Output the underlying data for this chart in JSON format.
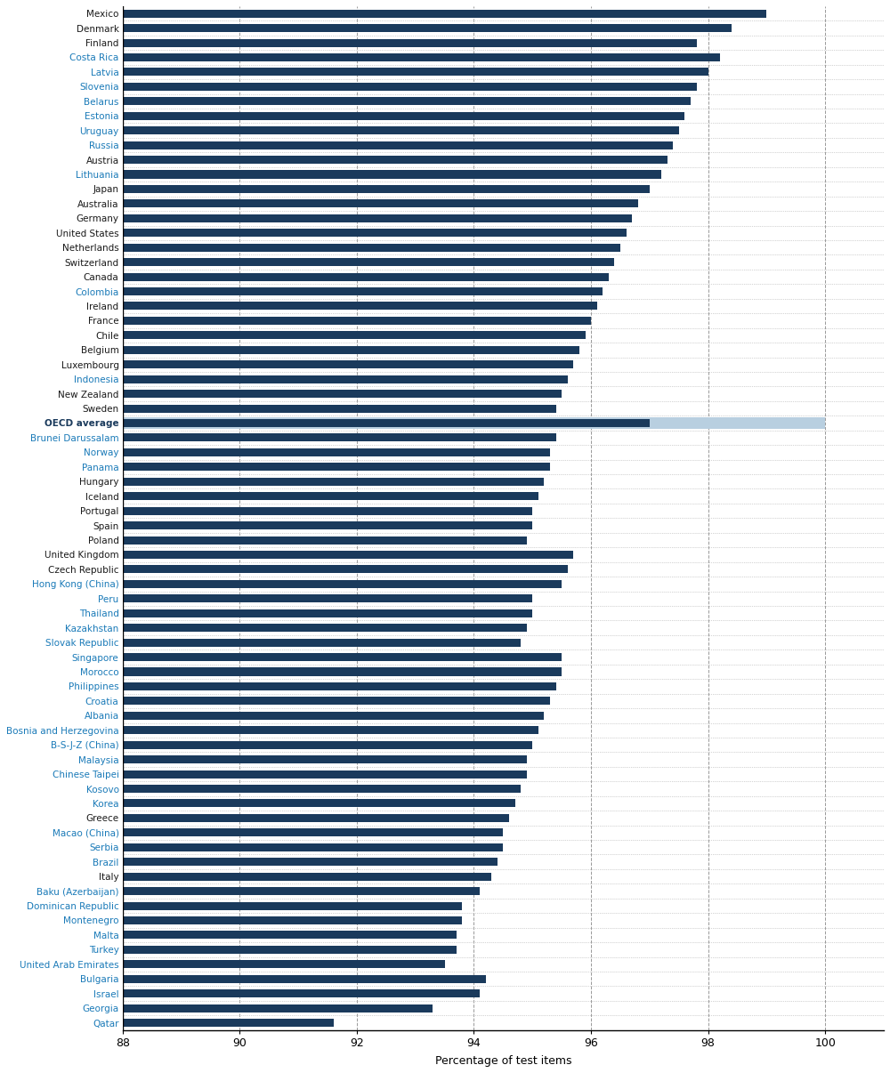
{
  "xlabel": "Percentage of test items",
  "bar_color": "#1a3a5c",
  "oecd_bg_color": "#b8cfe0",
  "countries_values": [
    [
      "Mexico",
      99.0
    ],
    [
      "Denmark",
      98.4
    ],
    [
      "Finland",
      97.8
    ],
    [
      "Costa Rica",
      98.2
    ],
    [
      "Latvia",
      98.0
    ],
    [
      "Slovenia",
      97.8
    ],
    [
      "Belarus",
      97.7
    ],
    [
      "Estonia",
      97.6
    ],
    [
      "Uruguay",
      97.5
    ],
    [
      "Russia",
      97.4
    ],
    [
      "Austria",
      97.3
    ],
    [
      "Lithuania",
      97.2
    ],
    [
      "Japan",
      97.0
    ],
    [
      "Australia",
      96.8
    ],
    [
      "Germany",
      96.7
    ],
    [
      "United States",
      96.6
    ],
    [
      "Netherlands",
      96.5
    ],
    [
      "Switzerland",
      96.4
    ],
    [
      "Canada",
      96.3
    ],
    [
      "Colombia",
      96.2
    ],
    [
      "Ireland",
      96.1
    ],
    [
      "France",
      96.0
    ],
    [
      "Chile",
      95.9
    ],
    [
      "Belgium",
      95.8
    ],
    [
      "Luxembourg",
      95.7
    ],
    [
      "Indonesia",
      95.6
    ],
    [
      "New Zealand",
      95.5
    ],
    [
      "Sweden",
      95.4
    ],
    [
      "OECD average",
      97.0
    ],
    [
      "Brunei Darussalam",
      95.4
    ],
    [
      "Norway",
      95.3
    ],
    [
      "Panama",
      95.3
    ],
    [
      "Hungary",
      95.2
    ],
    [
      "Iceland",
      95.1
    ],
    [
      "Portugal",
      95.0
    ],
    [
      "Spain",
      95.0
    ],
    [
      "Poland",
      94.9
    ],
    [
      "United Kingdom",
      95.7
    ],
    [
      "Czech Republic",
      95.6
    ],
    [
      "Hong Kong (China)",
      95.5
    ],
    [
      "Peru",
      95.0
    ],
    [
      "Thailand",
      95.0
    ],
    [
      "Kazakhstan",
      94.9
    ],
    [
      "Slovak Republic",
      94.8
    ],
    [
      "Singapore",
      95.5
    ],
    [
      "Morocco",
      95.5
    ],
    [
      "Philippines",
      95.4
    ],
    [
      "Croatia",
      95.3
    ],
    [
      "Albania",
      95.2
    ],
    [
      "Bosnia and Herzegovina",
      95.1
    ],
    [
      "B-S-J-Z (China)",
      95.0
    ],
    [
      "Malaysia",
      94.9
    ],
    [
      "Chinese Taipei",
      94.9
    ],
    [
      "Kosovo",
      94.8
    ],
    [
      "Korea",
      94.7
    ],
    [
      "Greece",
      94.6
    ],
    [
      "Macao (China)",
      94.5
    ],
    [
      "Serbia",
      94.5
    ],
    [
      "Brazil",
      94.4
    ],
    [
      "Italy",
      94.3
    ],
    [
      "Baku (Azerbaijan)",
      94.1
    ],
    [
      "Dominican Republic",
      93.8
    ],
    [
      "Montenegro",
      93.8
    ],
    [
      "Malta",
      93.7
    ],
    [
      "Turkey",
      93.7
    ],
    [
      "United Arab Emirates",
      93.5
    ],
    [
      "Bulgaria",
      94.2
    ],
    [
      "Israel",
      94.1
    ],
    [
      "Georgia",
      93.3
    ],
    [
      "Qatar",
      91.6
    ]
  ],
  "partner_countries": [
    "Costa Rica",
    "Panama",
    "Albania",
    "Bosnia and Herzegovina",
    "B-S-J-Z (China)",
    "Kosovo",
    "Macao (China)",
    "Baku (Azerbaijan)",
    "Dominican Republic",
    "Montenegro",
    "Malta",
    "Georgia",
    "Qatar",
    "Hong Kong (China)",
    "Chinese Taipei",
    "Morocco",
    "Philippines",
    "Brunei Darussalam",
    "Colombia",
    "Uruguay",
    "Russia",
    "Lithuania",
    "Singapore",
    "Croatia",
    "Malaysia",
    "Kazakhstan",
    "Peru",
    "Thailand",
    "Serbia",
    "Brazil",
    "Turkey",
    "United Arab Emirates",
    "Bulgaria",
    "Israel",
    "Slovak Republic",
    "Indonesia",
    "Latvia",
    "Slovenia",
    "Belarus",
    "Estonia",
    "Albania",
    "Kosovo",
    "Montenegro",
    "Norway",
    "Chinese Taipei",
    "Singapore",
    "Korea"
  ]
}
